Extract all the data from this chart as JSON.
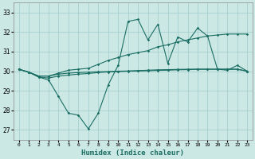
{
  "xlabel": "Humidex (Indice chaleur)",
  "background_color": "#cce8e4",
  "grid_color": "#a0cccc",
  "line_color": "#1a6e64",
  "x": [
    0,
    1,
    2,
    3,
    4,
    5,
    6,
    7,
    8,
    9,
    10,
    11,
    12,
    13,
    14,
    15,
    16,
    17,
    18,
    19,
    20,
    21,
    22,
    23
  ],
  "ylim": [
    26.5,
    33.5
  ],
  "yticks": [
    27,
    28,
    29,
    30,
    31,
    32,
    33
  ],
  "series": {
    "line1": [
      30.1,
      29.95,
      29.7,
      29.55,
      28.7,
      27.85,
      27.75,
      27.05,
      27.85,
      29.3,
      30.3,
      32.55,
      32.65,
      31.6,
      32.4,
      30.4,
      31.75,
      31.5,
      32.2,
      31.8,
      30.1,
      30.05,
      30.3,
      30.0
    ],
    "line2": [
      30.1,
      29.95,
      29.75,
      29.75,
      29.9,
      30.05,
      30.1,
      30.15,
      30.35,
      30.55,
      30.7,
      30.85,
      30.95,
      31.05,
      31.25,
      31.35,
      31.5,
      31.6,
      31.7,
      31.8,
      31.85,
      31.9,
      31.9,
      31.9
    ],
    "line3": [
      30.1,
      29.95,
      29.75,
      29.75,
      29.85,
      29.9,
      29.93,
      29.95,
      29.97,
      29.98,
      30.0,
      30.01,
      30.03,
      30.05,
      30.07,
      30.08,
      30.09,
      30.1,
      30.1,
      30.1,
      30.1,
      30.1,
      30.1,
      30.0
    ],
    "line4": [
      30.1,
      29.95,
      29.7,
      29.65,
      29.75,
      29.8,
      29.85,
      29.88,
      29.93,
      29.96,
      29.98,
      30.0,
      30.01,
      30.02,
      30.04,
      30.05,
      30.07,
      30.08,
      30.1,
      30.1,
      30.1,
      30.1,
      30.1,
      30.0
    ]
  }
}
